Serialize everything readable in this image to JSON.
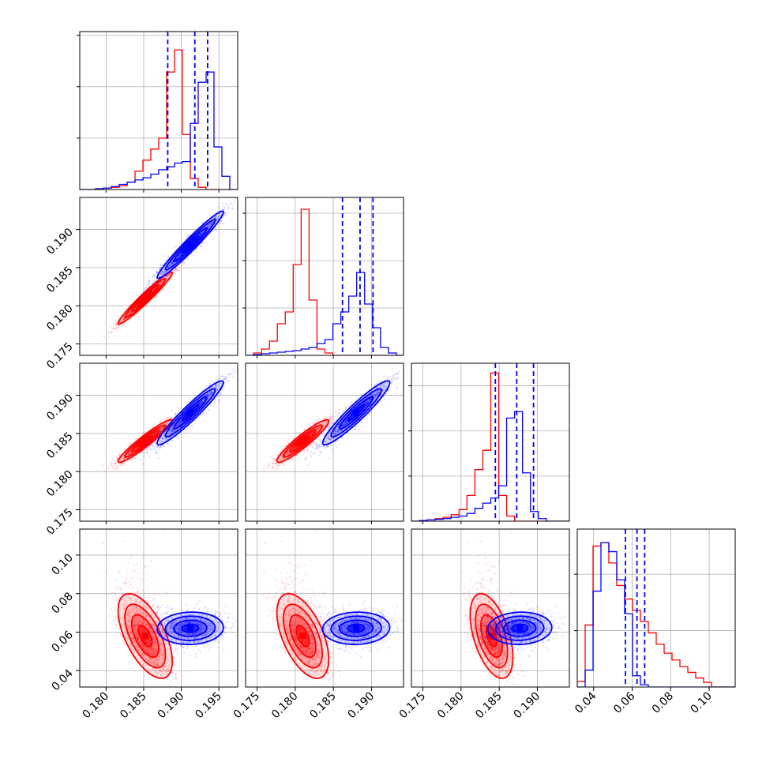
{
  "chart_data": {
    "type": "corner",
    "colors": {
      "red": "#ff0000",
      "blue": "#0000ff"
    },
    "params": [
      {
        "range": [
          0.1765,
          0.1975
        ],
        "ticks": [
          0.18,
          0.185,
          0.19,
          0.195
        ],
        "ticklabels": [
          "0.180",
          "0.185",
          "0.190",
          "0.195"
        ]
      },
      {
        "range": [
          0.1735,
          0.1942
        ],
        "ticks": [
          0.175,
          0.18,
          0.185,
          0.19
        ],
        "ticklabels": [
          "0.175",
          "0.180",
          "0.185",
          "0.190"
        ]
      },
      {
        "range": [
          0.1735,
          0.1942
        ],
        "ticks": [
          0.175,
          0.18,
          0.185,
          0.19
        ],
        "ticklabels": [
          "0.175",
          "0.180",
          "0.185",
          "0.190"
        ]
      },
      {
        "range": [
          0.0315,
          0.1135
        ],
        "ticks": [
          0.04,
          0.06,
          0.08,
          0.1
        ],
        "ticklabels": [
          "0.04",
          "0.06",
          "0.08",
          "0.10"
        ]
      }
    ],
    "grid": true,
    "histograms": [
      {
        "red": {
          "edges_start": 0.1765,
          "bin_width": 0.00105,
          "counts": [
            0,
            0,
            1,
            2,
            3,
            5,
            10,
            25,
            40,
            55,
            70,
            160,
            190,
            75,
            15,
            3,
            0,
            0,
            0,
            0
          ]
        },
        "blue": {
          "edges_start": 0.1765,
          "bin_width": 0.00105,
          "counts": [
            0,
            0,
            1,
            2,
            4,
            7,
            10,
            13,
            16,
            21,
            27,
            31,
            36,
            38,
            90,
            146,
            160,
            58,
            18,
            0
          ]
        },
        "blue_quantiles": [
          0.1882,
          0.1918,
          0.1935
        ],
        "ylim": [
          0,
          215
        ]
      },
      {
        "red": {
          "edges_start": 0.1735,
          "bin_width": 0.00104,
          "counts": [
            0,
            3,
            8,
            18,
            40,
            55,
            115,
            185,
            70,
            8,
            3,
            0,
            0,
            0,
            0,
            0,
            0,
            0,
            0,
            0
          ]
        },
        "blue": {
          "edges_start": 0.1735,
          "bin_width": 0.00104,
          "counts": [
            0,
            1,
            2,
            3,
            4,
            5,
            6,
            8,
            10,
            15,
            20,
            40,
            55,
            75,
            105,
            65,
            35,
            10,
            3,
            0
          ]
        },
        "blue_quantiles": [
          0.1862,
          0.1885,
          0.1902
        ],
        "ylim": [
          0,
          200
        ]
      },
      {
        "red": {
          "edges_start": 0.1735,
          "bin_width": 0.00104,
          "counts": [
            0,
            1,
            2,
            4,
            6,
            10,
            18,
            40,
            80,
            110,
            230,
            40,
            8,
            0,
            0,
            0,
            0,
            0,
            0,
            0
          ]
        },
        "blue": {
          "edges_start": 0.1735,
          "bin_width": 0.00104,
          "counts": [
            0,
            1,
            2,
            3,
            4,
            6,
            8,
            12,
            20,
            28,
            36,
            55,
            160,
            170,
            75,
            15,
            4,
            0,
            0,
            0
          ]
        },
        "blue_quantiles": [
          0.1845,
          0.1873,
          0.1895
        ],
        "ylim": [
          0,
          245
        ]
      },
      {
        "red": {
          "edges_start": 0.0315,
          "bin_width": 0.0041,
          "counts": [
            5,
            55,
            125,
            128,
            110,
            90,
            78,
            68,
            58,
            48,
            38,
            30,
            24,
            18,
            13,
            8,
            4,
            0,
            0,
            0
          ]
        },
        "blue": {
          "edges_start": 0.0315,
          "bin_width": 0.0041,
          "counts": [
            0,
            15,
            85,
            128,
            120,
            95,
            65,
            10,
            2,
            0,
            0,
            0,
            0,
            0,
            0,
            0,
            0,
            0,
            0,
            0
          ]
        },
        "blue_quantiles": [
          0.0565,
          0.0625,
          0.0665
        ],
        "ylim": [
          0,
          140
        ]
      }
    ],
    "distributions": {
      "red": {
        "mean": [
          0.1852,
          0.181,
          0.184,
          0.058
        ],
        "sd": [
          0.0018,
          0.0017,
          0.0014,
          0.011
        ],
        "corr": [
          [
            1,
            0.97,
            0.95,
            -0.6
          ],
          [
            0.97,
            1,
            0.93,
            -0.55
          ],
          [
            0.95,
            0.93,
            1,
            -0.5
          ],
          [
            -0.6,
            -0.55,
            -0.5,
            1
          ]
        ]
      },
      "blue": {
        "mean": [
          0.1912,
          0.188,
          0.1877,
          0.062
        ],
        "sd": [
          0.0022,
          0.0022,
          0.0021,
          0.0042
        ],
        "corr": [
          [
            1,
            0.97,
            0.95,
            0.05
          ],
          [
            0.97,
            1,
            0.94,
            0.05
          ],
          [
            0.95,
            0.94,
            1,
            0.05
          ],
          [
            0.05,
            0.05,
            0.05,
            1
          ]
        ]
      }
    }
  }
}
